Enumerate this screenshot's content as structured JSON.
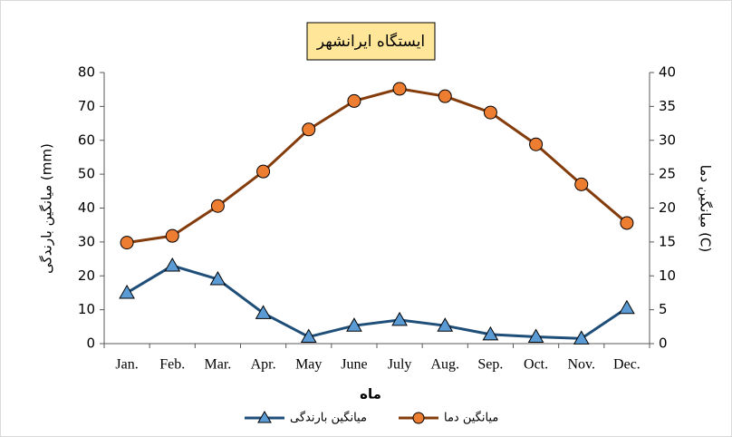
{
  "chart_data": {
    "type": "line",
    "title": "ایستگاه ایرانشهر",
    "x_label": "ماه",
    "y_label": "میانگین بارندگی (mm)",
    "y2_label": "میانگین دما (C)",
    "categories": [
      "Jan.",
      "Feb.",
      "Mar.",
      "Apr.",
      "May",
      "June",
      "July",
      "Aug.",
      "Sep.",
      "Oct.",
      "Nov.",
      "Dec."
    ],
    "series": [
      {
        "name": "میانگین بارندگی",
        "color": "#1f4e79",
        "marker_color": "#5b9bd5",
        "marker": "triangle",
        "values": [
          15,
          23,
          19,
          9,
          2,
          5.3,
          7,
          5.3,
          2.7,
          2,
          1.5,
          10.5
        ]
      },
      {
        "name": "میانگین دما",
        "color": "#843c0c",
        "marker_color": "#ed7d31",
        "marker": "circle",
        "axis": "y2",
        "values": [
          14.9,
          15.9,
          20.3,
          25.4,
          31.6,
          35.8,
          37.6,
          36.5,
          34.1,
          29.4,
          23.5,
          17.8
        ]
      }
    ],
    "ylim": [
      0,
      80
    ],
    "yticks": [
      0,
      10,
      20,
      30,
      40,
      50,
      60,
      70,
      80
    ],
    "y2lim": [
      0,
      40
    ],
    "y2ticks": [
      0,
      5,
      10,
      15,
      20,
      25,
      30,
      35,
      40
    ],
    "grid": false,
    "legend": "bottom"
  }
}
